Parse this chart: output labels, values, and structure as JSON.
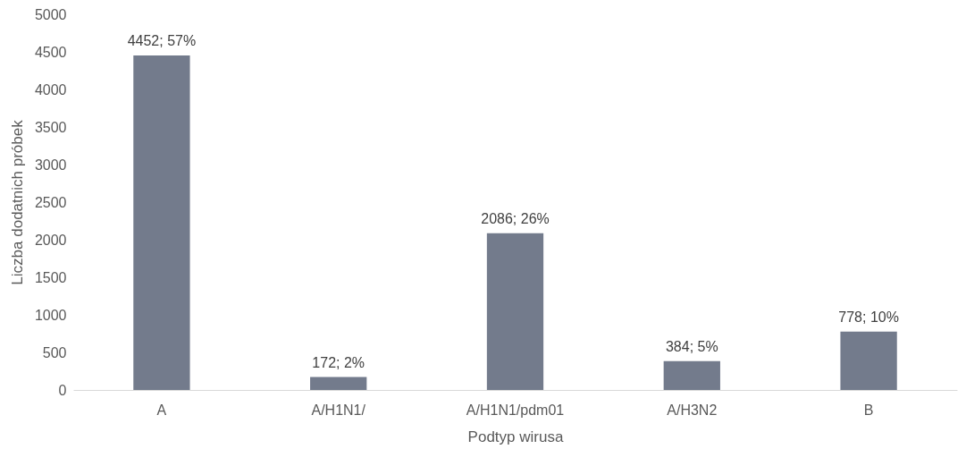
{
  "chart_data": {
    "type": "bar",
    "xlabel": "Podtyp wirusa",
    "ylabel": "Liczba dodatnich próbek",
    "categories": [
      "A",
      "A/H1N1/",
      "A/H1N1/pdm01",
      "A/H3N2",
      "B"
    ],
    "values": [
      4452,
      172,
      2086,
      384,
      778
    ],
    "value_labels": [
      "4452; 57%",
      "172; 2%",
      "2086; 26%",
      "384; 5%",
      "778; 10%"
    ],
    "color": "#737b8c",
    "ylim": [
      0,
      5000
    ],
    "yticks": [
      0,
      500,
      1000,
      1500,
      2000,
      2500,
      3000,
      3500,
      4000,
      4500,
      5000
    ],
    "grid": false
  }
}
